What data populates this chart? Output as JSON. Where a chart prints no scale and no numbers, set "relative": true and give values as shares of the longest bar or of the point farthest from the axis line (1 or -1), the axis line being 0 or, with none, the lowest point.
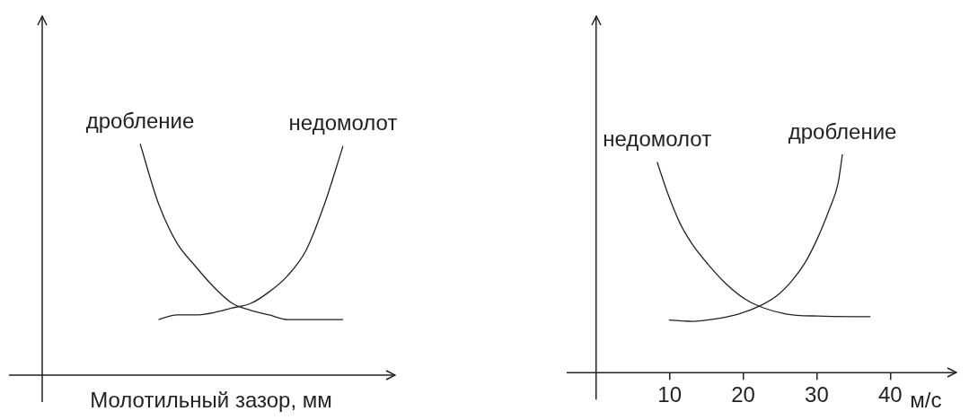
{
  "chart_data": [
    {
      "type": "line",
      "relative": true,
      "xlabel": "Молотильный зазор, мм",
      "tick_labels": false,
      "legend": false,
      "marker": "none",
      "line_style": "solid",
      "categories": [
        null,
        null,
        null,
        null,
        null,
        null,
        null,
        null,
        null,
        null,
        null,
        null
      ],
      "series": [
        {
          "name": "дробление",
          "color": "#222222",
          "values": [
            1,
            0.74,
            0.57,
            0.47,
            0.38,
            0.31,
            0.28,
            0.26,
            0.24,
            0.24,
            0.24,
            0.24
          ]
        },
        {
          "name": "недомолот",
          "color": "#222222",
          "values": [
            null,
            0.24,
            0.26,
            0.26,
            0.27,
            0.29,
            0.31,
            0.36,
            0.43,
            0.54,
            0.74,
            0.99
          ]
        }
      ]
    },
    {
      "type": "line",
      "relative": true,
      "xlabel": "м/с",
      "tick_labels": "x",
      "legend": false,
      "marker": "none",
      "line_style": "solid",
      "xlim": [
        -4,
        49
      ],
      "xticks": [
        10,
        20,
        30,
        40
      ],
      "series": [
        {
          "name": "недомолот",
          "color": "#222222",
          "x": [
            8.3,
            9.7,
            11.4,
            13.1,
            15.2,
            17.7,
            20.3,
            22.4,
            25.8,
            30.1,
            37.3
          ],
          "values": [
            0.965,
            0.825,
            0.685,
            0.587,
            0.497,
            0.406,
            0.336,
            0.301,
            0.269,
            0.259,
            0.256
          ]
        },
        {
          "name": "дробление",
          "color": "#222222",
          "x": [
            9.9,
            13.1,
            16.0,
            19.4,
            22.4,
            24.5,
            26.6,
            28.4,
            30.1,
            31.8,
            32.9,
            33.5
          ],
          "values": [
            0.241,
            0.235,
            0.245,
            0.269,
            0.308,
            0.35,
            0.42,
            0.503,
            0.615,
            0.755,
            0.867,
            1.0
          ]
        }
      ]
    }
  ]
}
